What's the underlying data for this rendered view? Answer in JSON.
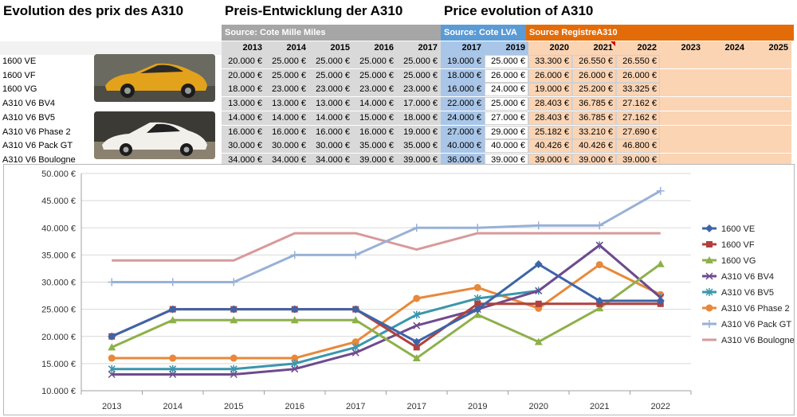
{
  "titles": {
    "fr": "Evolution des prix des A310",
    "de": "Preis-Entwicklung der A310",
    "en": "Price evolution of A310"
  },
  "sources": {
    "cote_mille_miles": "Source: Cote Mille Miles",
    "cote_lva": "Source: Cote LVA",
    "registre": "Source RegistreA310"
  },
  "colors": {
    "band_grey": "#a6a6a6",
    "band_blue": "#5b9bd5",
    "band_orange": "#e36c09",
    "cell_grey": "#d9d9d9",
    "cell_blue": "#a9c6e8",
    "cell_orange": "#fbd4b4"
  },
  "table": {
    "years": [
      "2013",
      "2014",
      "2015",
      "2016",
      "2017",
      "2017",
      "2019",
      "2020",
      "2021",
      "2022",
      "2023",
      "2024",
      "2025"
    ],
    "rows": [
      {
        "model": "1600 VE",
        "values": [
          "20.000 €",
          "25.000 €",
          "25.000 €",
          "25.000 €",
          "25.000 €",
          "19.000 €",
          "25.000 €",
          "33.300 €",
          "26.550 €",
          "26.550 €"
        ]
      },
      {
        "model": "1600 VF",
        "values": [
          "20.000 €",
          "25.000 €",
          "25.000 €",
          "25.000 €",
          "25.000 €",
          "18.000 €",
          "26.000 €",
          "26.000 €",
          "26.000 €",
          "26.000 €"
        ]
      },
      {
        "model": "1600 VG",
        "values": [
          "18.000 €",
          "23.000 €",
          "23.000 €",
          "23.000 €",
          "23.000 €",
          "16.000 €",
          "24.000 €",
          "19.000 €",
          "25.200 €",
          "33.325 €"
        ]
      },
      {
        "model": "A310 V6 BV4",
        "values": [
          "13.000 €",
          "13.000 €",
          "13.000 €",
          "14.000 €",
          "17.000 €",
          "22.000 €",
          "25.000 €",
          "28.403 €",
          "36.785 €",
          "27.162 €"
        ]
      },
      {
        "model": "A310 V6 BV5",
        "values": [
          "14.000 €",
          "14.000 €",
          "14.000 €",
          "15.000 €",
          "18.000 €",
          "24.000 €",
          "27.000 €",
          "28.403 €",
          "36.785 €",
          "27.162 €"
        ]
      },
      {
        "model": "A310 V6 Phase 2",
        "values": [
          "16.000 €",
          "16.000 €",
          "16.000 €",
          "16.000 €",
          "19.000 €",
          "27.000 €",
          "29.000 €",
          "25.182 €",
          "33.210 €",
          "27.690 €"
        ]
      },
      {
        "model": "A310 V6 Pack GT",
        "values": [
          "30.000 €",
          "30.000 €",
          "30.000 €",
          "35.000 €",
          "35.000 €",
          "40.000 €",
          "40.000 €",
          "40.426 €",
          "40.426 €",
          "46.800 €"
        ]
      },
      {
        "model": "A310 V6 Boulogne",
        "values": [
          "34.000 €",
          "34.000 €",
          "34.000 €",
          "39.000 €",
          "39.000 €",
          "36.000 €",
          "39.000 €",
          "39.000 €",
          "39.000 €",
          "39.000 €"
        ]
      }
    ]
  },
  "chart_data": {
    "type": "line",
    "categories": [
      "2013",
      "2014",
      "2015",
      "2016",
      "2017",
      "2017",
      "2019",
      "2020",
      "2021",
      "2022"
    ],
    "ylim": [
      10000,
      50000
    ],
    "yticks": [
      {
        "value": 10000,
        "label": "10.000 €"
      },
      {
        "value": 15000,
        "label": "15.000 €"
      },
      {
        "value": 20000,
        "label": "20.000 €"
      },
      {
        "value": 25000,
        "label": "25.000 €"
      },
      {
        "value": 30000,
        "label": "30.000 €"
      },
      {
        "value": 35000,
        "label": "35.000 €"
      },
      {
        "value": 40000,
        "label": "40.000 €"
      },
      {
        "value": 45000,
        "label": "45.000 €"
      },
      {
        "value": 50000,
        "label": "50.000 €"
      }
    ],
    "grid": true,
    "legend": "right",
    "series": [
      {
        "name": "1600 VE",
        "color": "#3d64a8",
        "marker": "diamond",
        "values": [
          20000,
          25000,
          25000,
          25000,
          25000,
          19000,
          25000,
          33300,
          26550,
          26550
        ]
      },
      {
        "name": "1600 VF",
        "color": "#b0413e",
        "marker": "square",
        "values": [
          20000,
          25000,
          25000,
          25000,
          25000,
          18000,
          26000,
          26000,
          26000,
          26000
        ]
      },
      {
        "name": "1600 VG",
        "color": "#8eb04a",
        "marker": "triangle",
        "values": [
          18000,
          23000,
          23000,
          23000,
          23000,
          16000,
          24000,
          19000,
          25200,
          33325
        ]
      },
      {
        "name": "A310 V6 BV4",
        "color": "#6f4a8e",
        "marker": "x",
        "values": [
          13000,
          13000,
          13000,
          14000,
          17000,
          22000,
          25000,
          28403,
          36785,
          27162
        ]
      },
      {
        "name": "A310 V6 BV5",
        "color": "#3a96ad",
        "marker": "star",
        "values": [
          14000,
          14000,
          14000,
          15000,
          18000,
          24000,
          27000,
          28403,
          36785,
          27162
        ]
      },
      {
        "name": "A310 V6 Phase 2",
        "color": "#e8883a",
        "marker": "circle",
        "values": [
          16000,
          16000,
          16000,
          16000,
          19000,
          27000,
          29000,
          25182,
          33210,
          27690
        ]
      },
      {
        "name": "A310 V6 Pack GT",
        "color": "#98b1d6",
        "marker": "plus",
        "values": [
          30000,
          30000,
          30000,
          35000,
          35000,
          40000,
          40000,
          40426,
          40426,
          46800
        ]
      },
      {
        "name": "A310 V6 Boulogne",
        "color": "#d8999a",
        "marker": "none",
        "values": [
          34000,
          34000,
          34000,
          39000,
          39000,
          36000,
          39000,
          39000,
          39000,
          39000
        ]
      }
    ]
  }
}
